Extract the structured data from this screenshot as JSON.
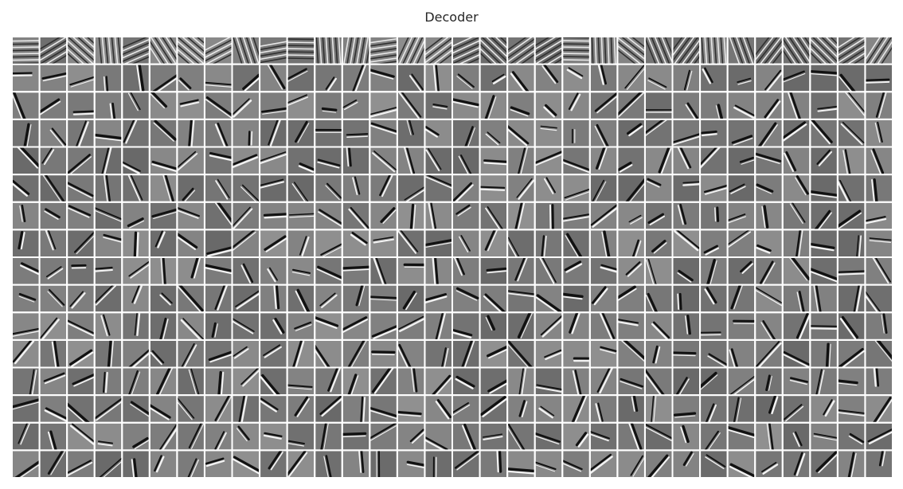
{
  "figure": {
    "title": "Decoder",
    "grid": {
      "rows": 16,
      "cols": 32,
      "total_filters": 512
    },
    "tile_background": "#7a7a7a",
    "separator_color": "#ffffff",
    "colormap": "gray"
  }
}
